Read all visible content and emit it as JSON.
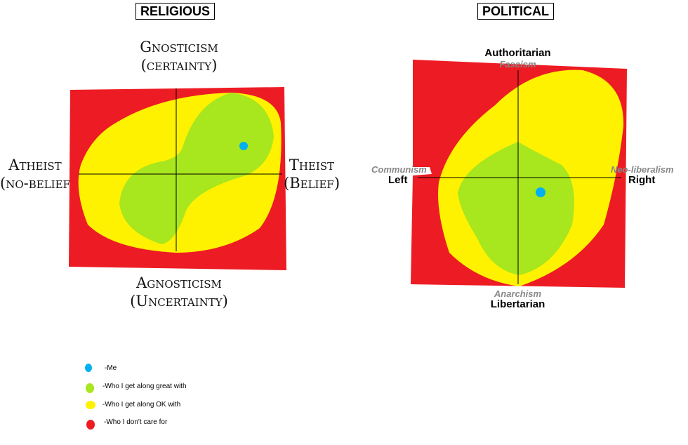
{
  "religious": {
    "title": "RELIGIOUS",
    "top": [
      "Gnosticism",
      "(certainty)"
    ],
    "bottom": [
      "Agnosticism",
      "(Uncertainty)"
    ],
    "left": [
      "Atheist",
      "(no-belief"
    ],
    "right": [
      "Theist",
      "(Belief)"
    ]
  },
  "political": {
    "title": "POLITICAL",
    "top": "Authoritarian",
    "top_sub": "Fascism",
    "bottom": "Libertarian",
    "bottom_sub": "Anarchism",
    "left": "Left",
    "left_sub": "Communism",
    "right": "Right",
    "right_sub": "Neo-liberalism"
  },
  "legend": [
    {
      "label": "-Me",
      "color": "#00b0f0"
    },
    {
      "label": "-Who I get along great with",
      "color": "#a8e61d"
    },
    {
      "label": "-Who I get along OK with",
      "color": "#fff200"
    },
    {
      "label": "-Who I don't care for",
      "color": "#ed1c24"
    }
  ]
}
